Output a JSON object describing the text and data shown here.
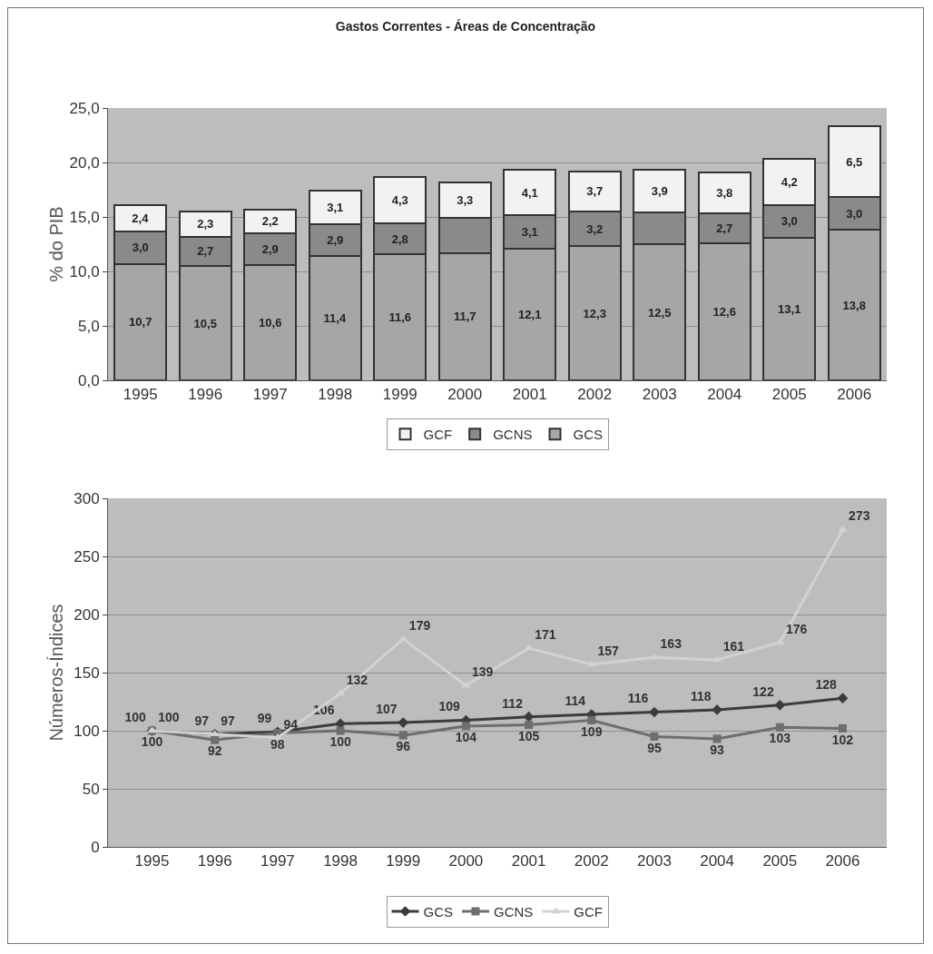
{
  "chart_data": [
    {
      "type": "bar",
      "title": "Gastos Correntes - Áreas de Concentração",
      "ylabel": "% do PIB",
      "categories": [
        "1995",
        "1996",
        "1997",
        "1998",
        "1999",
        "2000",
        "2001",
        "2002",
        "2003",
        "2004",
        "2005",
        "2006"
      ],
      "stacked": true,
      "ylim": [
        0,
        25
      ],
      "yticks": [
        {
          "value": 0,
          "label": "0,0"
        },
        {
          "value": 5,
          "label": "5,0"
        },
        {
          "value": 10,
          "label": "10,0"
        },
        {
          "value": 15,
          "label": "15,0"
        },
        {
          "value": 20,
          "label": "20,0"
        },
        {
          "value": 25,
          "label": "25,0"
        }
      ],
      "grid": "y",
      "legend": "bottom",
      "series": [
        {
          "name": "GCS",
          "color": "#a6a6a6",
          "values": [
            10.7,
            10.5,
            10.6,
            11.4,
            11.6,
            11.7,
            12.1,
            12.3,
            12.5,
            12.6,
            13.1,
            13.8
          ],
          "value_labels": [
            "10,7",
            "10,5",
            "10,6",
            "11,4",
            "11,6",
            "11,7",
            "12,1",
            "12,3",
            "12,5",
            "12,6",
            "13,1",
            "13,8"
          ]
        },
        {
          "name": "GCNS",
          "color": "#8a8a8a",
          "values": [
            3.0,
            2.7,
            2.9,
            2.9,
            2.8,
            3.2,
            3.1,
            3.2,
            2.9,
            2.7,
            3.0,
            3.0
          ],
          "value_labels": [
            "3,0",
            "2,7",
            "2,9",
            "2,9",
            "2,8",
            null,
            "3,1",
            "3,2",
            null,
            "2,7",
            "3,0",
            "3,0"
          ]
        },
        {
          "name": "GCF",
          "color": "#f2f2f2",
          "values": [
            2.4,
            2.3,
            2.2,
            3.1,
            4.3,
            3.3,
            4.1,
            3.7,
            3.9,
            3.8,
            4.2,
            6.5
          ],
          "value_labels": [
            "2,4",
            "2,3",
            "2,2",
            "3,1",
            "4,3",
            "3,3",
            "4,1",
            "3,7",
            "3,9",
            "3,8",
            "4,2",
            "6,5"
          ]
        }
      ]
    },
    {
      "type": "line",
      "ylabel": "Números-Índices",
      "categories": [
        "1995",
        "1996",
        "1997",
        "1998",
        "1999",
        "2000",
        "2001",
        "2002",
        "2003",
        "2004",
        "2005",
        "2006"
      ],
      "ylim": [
        0,
        300
      ],
      "yticks": [
        0,
        50,
        100,
        150,
        200,
        250,
        300
      ],
      "grid": "y",
      "legend": "bottom",
      "data_labels": true,
      "series": [
        {
          "name": "GCS",
          "color": "#3c3c3c",
          "marker": "diamond",
          "values": [
            100,
            97,
            99,
            106,
            107,
            109,
            112,
            114,
            116,
            118,
            122,
            128
          ]
        },
        {
          "name": "GCNS",
          "color": "#6e6e6e",
          "marker": "square",
          "values": [
            100,
            92,
            98,
            100,
            96,
            104,
            105,
            109,
            95,
            93,
            103,
            102
          ]
        },
        {
          "name": "GCF",
          "color": "#d2d2d2",
          "marker": "triangle",
          "values": [
            100,
            97,
            94,
            132,
            179,
            139,
            171,
            157,
            163,
            161,
            176,
            273
          ]
        }
      ]
    }
  ]
}
